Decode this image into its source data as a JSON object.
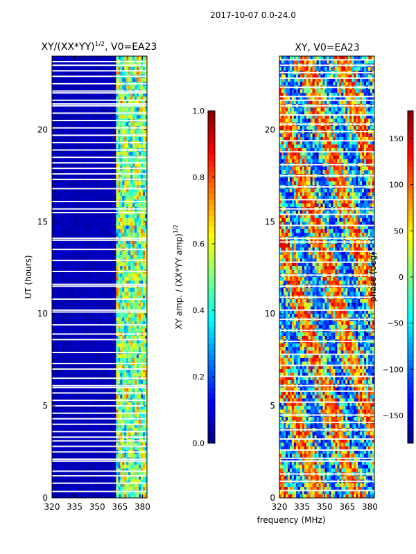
{
  "figure": {
    "suptitle": "2017-10-07 0.0-24.0",
    "xlabel_shared": "frequency (MHz)"
  },
  "colormap": [
    "#000080",
    "#0000ff",
    "#0080ff",
    "#00ffff",
    "#80ff80",
    "#ffff00",
    "#ff8000",
    "#ff0000",
    "#800000"
  ],
  "chart_data": [
    {
      "type": "heatmap",
      "title_prefix": "XY/(XX*YY)",
      "title_exponent": "1/2",
      "title_suffix": ", V0=EA23",
      "xlabel": "",
      "ylabel": "UT (hours)",
      "xlim": [
        320,
        383
      ],
      "ylim": [
        0,
        24
      ],
      "xticks": [
        "320",
        "335",
        "350",
        "365",
        "380"
      ],
      "xtick_values": [
        320,
        335,
        350,
        365,
        380
      ],
      "yticks": [
        "0",
        "5",
        "10",
        "15",
        "20"
      ],
      "ytick_values": [
        0,
        5,
        10,
        15,
        20
      ],
      "colorbar": {
        "label_prefix": "XY amp. / (XX*YY amp)",
        "label_exponent": "1/2",
        "range": [
          0.0,
          1.0
        ],
        "ticks": [
          "0.0",
          "0.2",
          "0.4",
          "0.6",
          "0.8",
          "1.0"
        ],
        "tick_values": [
          0.0,
          0.2,
          0.4,
          0.6,
          0.8,
          1.0
        ]
      },
      "description_of_values": "Mostly low amplitude (~0.05) below 362 MHz; bands of 0.3-0.7 between 362 and 382 MHz",
      "low_band_value": 0.05,
      "high_band_range_mhz": [
        362,
        382
      ],
      "high_band_value_range": [
        0.3,
        0.7
      ],
      "flagged_hours": [
        0.35,
        0.8,
        1.2,
        1.45,
        2.0,
        2.1,
        2.5,
        2.8,
        3.1,
        3.3,
        3.6,
        4.0,
        4.3,
        4.6,
        5.0,
        5.3,
        5.7,
        6.0,
        6.1,
        6.5,
        7.0,
        7.3,
        7.9,
        8.6,
        8.9,
        9.4,
        10.1,
        10.2,
        10.8,
        11.5,
        11.6,
        12.3,
        12.9,
        13.5,
        14.0,
        14.1,
        15.5,
        15.7,
        16.1,
        16.8,
        17.3,
        17.6,
        17.9,
        18.2,
        18.5,
        18.9,
        19.3,
        19.7,
        20.1,
        20.5,
        20.9,
        21.3,
        21.4,
        21.6,
        22.0,
        22.1,
        22.5,
        22.9,
        23.2,
        23.5,
        23.7
      ]
    },
    {
      "type": "heatmap",
      "title": "XY, V0=EA23",
      "xlabel": "",
      "ylabel": "",
      "xlim": [
        320,
        383
      ],
      "ylim": [
        0,
        24
      ],
      "xticks": [
        "320",
        "335",
        "350",
        "365",
        "380"
      ],
      "xtick_values": [
        320,
        335,
        350,
        365,
        380
      ],
      "yticks": [
        "0",
        "5",
        "10",
        "15",
        "20"
      ],
      "ytick_values": [
        0,
        5,
        10,
        15,
        20
      ],
      "colorbar": {
        "label": "phase (deg)",
        "range": [
          -180,
          180
        ],
        "ticks": [
          "−150",
          "−100",
          "−50",
          "0",
          "50",
          "100",
          "150"
        ],
        "tick_values": [
          -150,
          -100,
          -50,
          0,
          50,
          100,
          150
        ]
      },
      "description_of_values": "Noisy phase spanning -180 to 180 degrees with coherent patches",
      "flagged_hours": [
        0.4,
        0.9,
        1.3,
        2.0,
        2.15,
        2.6,
        3.2,
        3.7,
        4.1,
        4.5,
        5.2,
        5.8,
        6.1,
        6.6,
        7.2,
        7.8,
        8.5,
        9.1,
        9.7,
        10.2,
        10.9,
        11.5,
        12.1,
        12.8,
        13.4,
        13.9,
        14.1,
        14.8,
        15.4,
        15.7,
        16.2,
        16.9,
        17.5,
        18.1,
        18.8,
        19.4,
        19.9,
        20.3,
        20.8,
        21.3,
        21.6,
        21.8,
        22.3,
        22.8,
        23.1,
        23.5,
        23.8
      ]
    }
  ]
}
